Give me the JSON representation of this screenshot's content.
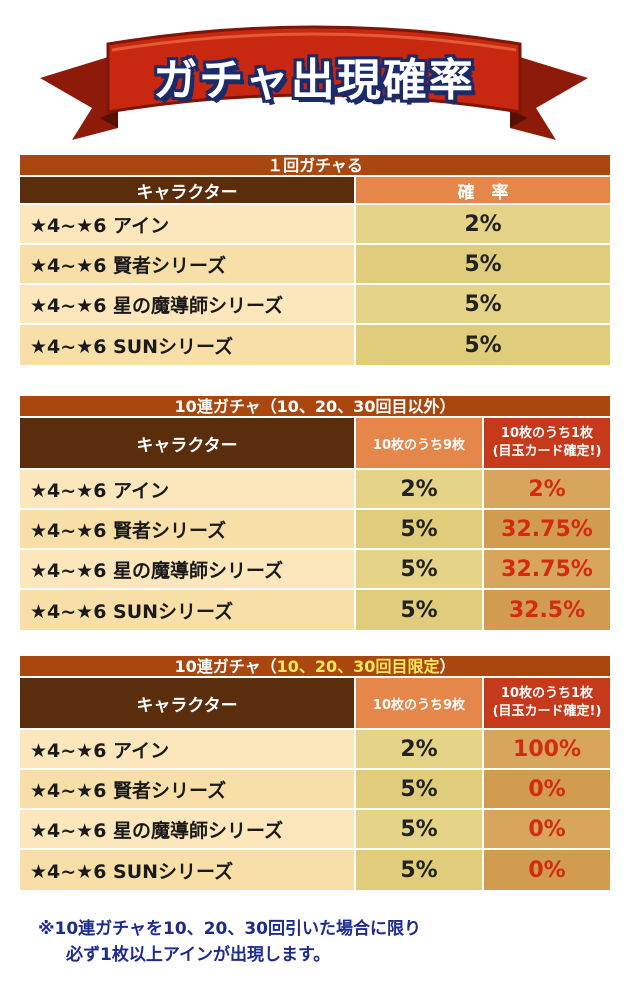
{
  "banner": {
    "title": "ガチャ出現確率"
  },
  "colors": {
    "ribbon": "#c8280f",
    "ribbon_dark": "#7e1608",
    "section_bar": "#a9470e",
    "header_dark": "#5a2d0c",
    "header_orange": "#e5864a",
    "header_red": "#c7391b",
    "name_cell": "#fbe7bb",
    "rate_cell": "#e5d387",
    "guarantee_cell": "#d7a55c",
    "guarantee_text": "#d42a10",
    "note_text": "#1d2b8f"
  },
  "table1": {
    "title": "１回ガチャる",
    "col_character": "キャラクター",
    "col_rate": "確　率",
    "rows": [
      {
        "name": "★4~★6 アイン",
        "rate": "2%"
      },
      {
        "name": "★4~★6 賢者シリーズ",
        "rate": "5%"
      },
      {
        "name": "★4~★6 星の魔導師シリーズ",
        "rate": "5%"
      },
      {
        "name": "★4~★6 SUNシリーズ",
        "rate": "5%"
      }
    ]
  },
  "table2": {
    "title": "10連ガチャ（10、20、30回目以外）",
    "col_character": "キャラクター",
    "col_nine": "10枚のうち9枚",
    "col_one_line1": "10枚のうち1枚",
    "col_one_line2": "(目玉カード確定!)",
    "rows": [
      {
        "name": "★4~★6 アイン",
        "nine": "2%",
        "one": "2%"
      },
      {
        "name": "★4~★6 賢者シリーズ",
        "nine": "5%",
        "one": "32.75%"
      },
      {
        "name": "★4~★6 星の魔導師シリーズ",
        "nine": "5%",
        "one": "32.75%"
      },
      {
        "name": "★4~★6 SUNシリーズ",
        "nine": "5%",
        "one": "32.5%"
      }
    ]
  },
  "table3": {
    "title_prefix": "10連ガチャ（",
    "title_highlight": "10、20、30回目限定",
    "title_suffix": "）",
    "col_character": "キャラクター",
    "col_nine": "10枚のうち9枚",
    "col_one_line1": "10枚のうち1枚",
    "col_one_line2": "(目玉カード確定!)",
    "rows": [
      {
        "name": "★4~★6 アイン",
        "nine": "2%",
        "one": "100%"
      },
      {
        "name": "★4~★6 賢者シリーズ",
        "nine": "5%",
        "one": "0%"
      },
      {
        "name": "★4~★6 星の魔導師シリーズ",
        "nine": "5%",
        "one": "0%"
      },
      {
        "name": "★4~★6 SUNシリーズ",
        "nine": "5%",
        "one": "0%"
      }
    ]
  },
  "note": {
    "line1": "※10連ガチャを10、20、30回引いた場合に限り",
    "line2": "必ず1枚以上アインが出現します。"
  }
}
